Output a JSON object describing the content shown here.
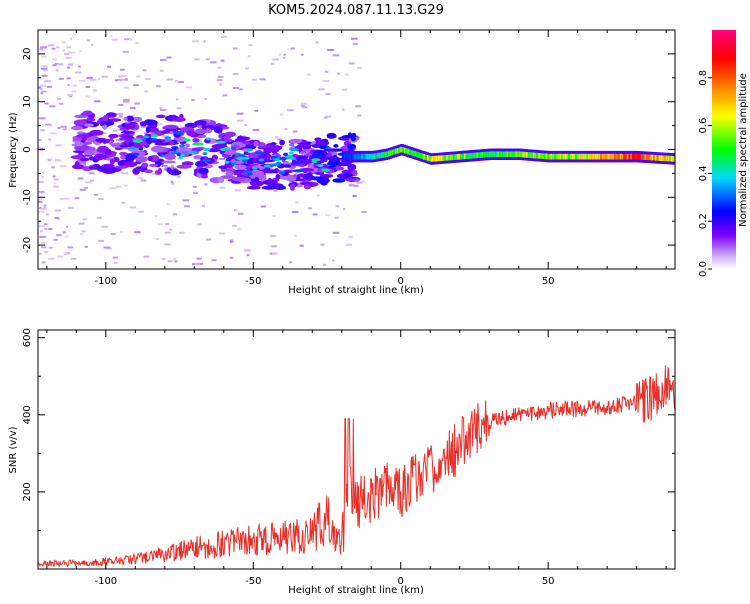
{
  "title": "KOM5.2024.087.11.13.G29",
  "chart_data": [
    {
      "type": "heatmap",
      "xlabel": "Height of straight line (km)",
      "ylabel": "Frequency (Hz)",
      "xlim": [
        -123,
        93
      ],
      "ylim": [
        -25,
        25
      ],
      "x_ticks": [
        -100,
        -50,
        0,
        50
      ],
      "y_ticks": [
        -20,
        -10,
        0,
        10,
        20
      ],
      "colorbar": {
        "label": "Normalized spectral amplitude",
        "range": [
          0,
          1
        ],
        "ticks": [
          "0.0",
          "0.2",
          "0.4",
          "0.6",
          "0.8"
        ],
        "colors": [
          "#ffffff",
          "#c9a3f5",
          "#7f00ff",
          "#0000ff",
          "#00d8ff",
          "#00ff00",
          "#ffff00",
          "#ff8000",
          "#ff0000",
          "#ff0080"
        ]
      },
      "ridge": {
        "x": [
          -120,
          -100,
          -90,
          -80,
          -70,
          -60,
          -50,
          -40,
          -30,
          -20,
          -15,
          -10,
          -5,
          0,
          5,
          10,
          20,
          30,
          40,
          50,
          60,
          70,
          80,
          93
        ],
        "y": [
          2,
          1.5,
          0.5,
          1,
          1,
          -1,
          -3,
          -3,
          -3,
          -1.5,
          -1.5,
          -1.5,
          -1,
          0,
          -1,
          -2,
          -1.5,
          -1,
          -1,
          -1.5,
          -1.5,
          -1.5,
          -1.5,
          -2
        ],
        "amplitude": [
          0.05,
          0.1,
          0.12,
          0.15,
          0.12,
          0.12,
          0.1,
          0.12,
          0.12,
          0.25,
          0.3,
          0.4,
          0.45,
          0.55,
          0.5,
          0.6,
          0.55,
          0.45,
          0.55,
          0.55,
          0.6,
          0.75,
          0.85,
          0.6
        ]
      }
    },
    {
      "type": "line",
      "xlabel": "Height of straight line (km)",
      "ylabel": "SNR (v/v)",
      "xlim": [
        -123,
        93
      ],
      "ylim": [
        0,
        620
      ],
      "x_ticks": [
        -100,
        -50,
        0,
        50
      ],
      "y_ticks": [
        200,
        400,
        600
      ],
      "series": [
        {
          "color": "#e8302a",
          "x": [
            -123,
            -110,
            -100,
            -90,
            -80,
            -70,
            -60,
            -50,
            -40,
            -30,
            -25,
            -20,
            -17,
            -15,
            -10,
            -5,
            0,
            5,
            10,
            15,
            20,
            25,
            30,
            40,
            50,
            60,
            70,
            80,
            85,
            90,
            93
          ],
          "y": [
            15,
            15,
            18,
            25,
            40,
            55,
            65,
            75,
            80,
            90,
            140,
            60,
            220,
            170,
            190,
            210,
            200,
            240,
            260,
            280,
            320,
            360,
            380,
            400,
            410,
            415,
            420,
            430,
            440,
            470,
            460
          ]
        }
      ]
    }
  ]
}
